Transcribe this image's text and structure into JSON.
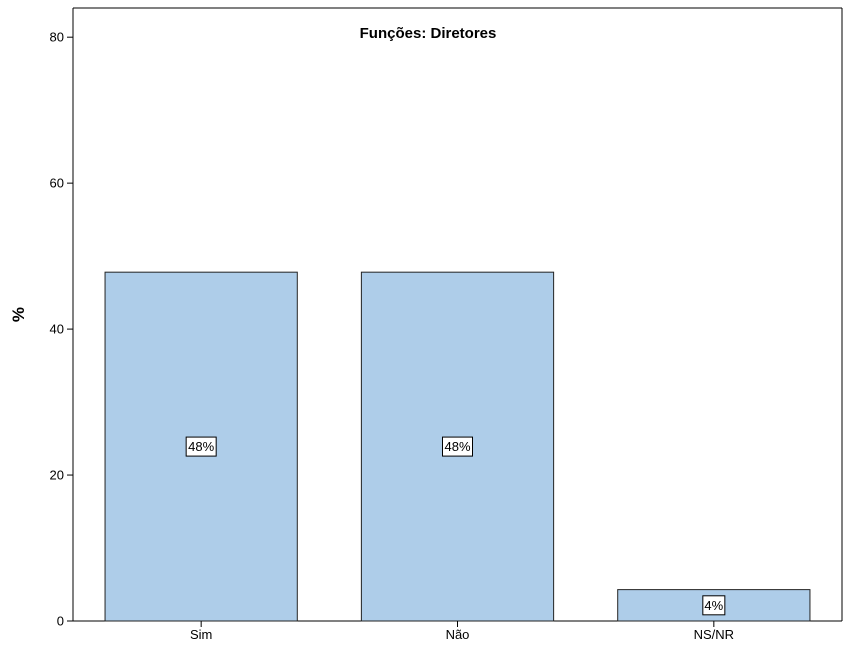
{
  "chart_data": {
    "type": "bar",
    "title": "Funções: Diretores",
    "ylabel": "%",
    "xlabel": "",
    "categories": [
      "Sim",
      "Não",
      "NS/NR"
    ],
    "values": [
      47.8,
      47.8,
      4.3
    ],
    "data_labels": [
      "48%",
      "48%",
      "4%"
    ],
    "ylim": [
      0,
      84
    ],
    "yticks": [
      0,
      20,
      40,
      60,
      80
    ],
    "grid": false,
    "legend": "none",
    "colors": {
      "bar_fill": "#aecde9",
      "bar_stroke": "#222222",
      "axis": "#000000"
    }
  }
}
